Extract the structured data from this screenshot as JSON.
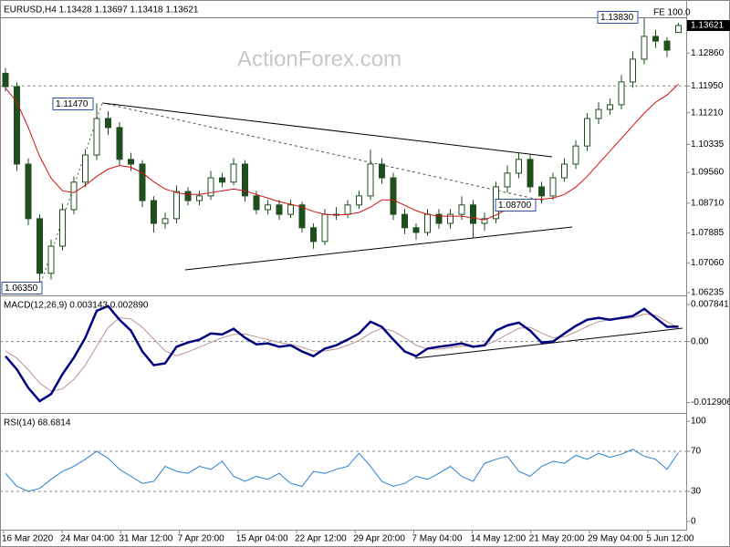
{
  "chart_data": [
    {
      "type": "candlestick",
      "title": "EURUSD,H4 1.13428 1.13697 1.13418 1.13621",
      "watermark": "ActionForex.com",
      "color": "#1f4f1f",
      "open": [
        1.123,
        1.1193,
        1.0979,
        1.0828,
        1.0677,
        1.0752,
        1.0853,
        1.0929,
        1.1004,
        1.1105,
        1.108,
        1.0992,
        1.0979,
        1.0878,
        1.0815,
        1.0828,
        1.0903,
        1.0878,
        1.0891,
        1.0941,
        1.0929,
        1.0979,
        1.0891,
        1.0853,
        1.0866,
        1.084,
        1.0866,
        1.0803,
        1.0765,
        1.084,
        1.084,
        1.0866,
        1.0891,
        1.0979,
        1.0941,
        1.084,
        1.0803,
        1.079,
        1.084,
        1.0815,
        1.084,
        1.0866,
        1.0815,
        1.0828,
        1.0916,
        1.0954,
        1.0992,
        1.0916,
        1.0891,
        1.0941,
        1.0979,
        1.1029,
        1.1105,
        1.113,
        1.1143,
        1.1206,
        1.1269,
        1.1332,
        1.1319,
        1.13428
      ],
      "high": [
        1.1245,
        1.1205,
        1.0995,
        1.084,
        1.077,
        1.087,
        1.0945,
        1.102,
        1.1147,
        1.1125,
        1.1095,
        1.101,
        1.099,
        1.089,
        1.0845,
        1.092,
        1.0915,
        1.0905,
        1.096,
        1.0955,
        1.0995,
        1.099,
        1.0905,
        1.088,
        1.088,
        1.088,
        1.0875,
        1.0815,
        1.0855,
        1.086,
        1.088,
        1.0905,
        1.102,
        1.0995,
        1.0955,
        1.0855,
        1.0815,
        1.0855,
        1.0855,
        1.0855,
        1.089,
        1.088,
        1.0845,
        1.093,
        1.0975,
        1.101,
        1.1005,
        1.093,
        1.0955,
        1.0995,
        1.1045,
        1.112,
        1.115,
        1.116,
        1.1225,
        1.129,
        1.1383,
        1.135,
        1.133,
        1.13697
      ],
      "low": [
        1.118,
        1.096,
        1.081,
        1.0635,
        1.066,
        1.074,
        1.084,
        1.0915,
        1.099,
        1.106,
        1.0975,
        1.096,
        1.086,
        1.079,
        1.08,
        1.0815,
        1.0865,
        1.0865,
        1.088,
        1.0915,
        1.092,
        1.0875,
        1.084,
        1.084,
        1.0825,
        1.083,
        1.079,
        1.0745,
        1.0755,
        1.0825,
        1.083,
        1.0855,
        1.088,
        1.0925,
        1.0825,
        1.0785,
        1.077,
        1.078,
        1.08,
        1.08,
        1.0825,
        1.0775,
        1.0795,
        1.0815,
        1.09,
        1.094,
        1.09,
        1.087,
        1.088,
        1.093,
        1.0965,
        1.1015,
        1.109,
        1.1115,
        1.113,
        1.119,
        1.1255,
        1.13,
        1.1275,
        1.13418
      ],
      "close": [
        1.1193,
        1.0979,
        1.0828,
        1.0677,
        1.0752,
        1.0853,
        1.0929,
        1.1004,
        1.1105,
        1.108,
        1.0992,
        1.0979,
        1.0878,
        1.0815,
        1.0828,
        1.0903,
        1.0878,
        1.0891,
        1.0941,
        1.0929,
        1.0979,
        1.0891,
        1.0853,
        1.0866,
        1.084,
        1.0866,
        1.0803,
        1.0765,
        1.084,
        1.084,
        1.0866,
        1.0891,
        1.0979,
        1.0941,
        1.084,
        1.0803,
        1.079,
        1.084,
        1.0815,
        1.084,
        1.0866,
        1.0815,
        1.0828,
        1.0916,
        1.0954,
        1.0992,
        1.0916,
        1.0891,
        1.0941,
        1.0979,
        1.1029,
        1.1105,
        1.113,
        1.1143,
        1.1206,
        1.1269,
        1.1332,
        1.1319,
        1.1294,
        1.13621
      ],
      "ma": {
        "color": "#d01010",
        "values": [
          1.119,
          1.115,
          1.108,
          1.1,
          1.094,
          1.0905,
          1.09,
          1.092,
          1.0945,
          1.0965,
          1.0975,
          1.097,
          1.0955,
          1.093,
          1.091,
          1.09,
          1.0895,
          1.0895,
          1.09,
          1.0905,
          1.091,
          1.0905,
          1.0895,
          1.0885,
          1.0875,
          1.0868,
          1.086,
          1.0848,
          1.084,
          1.0838,
          1.084,
          1.0845,
          1.086,
          1.088,
          1.088,
          1.0865,
          1.085,
          1.084,
          1.0835,
          1.0835,
          1.0835,
          1.083,
          1.0825,
          1.0838,
          1.0855,
          1.0875,
          1.0882,
          1.0882,
          1.0885,
          1.0895,
          1.0915,
          1.0945,
          1.098,
          1.1015,
          1.105,
          1.1085,
          1.112,
          1.115,
          1.117,
          1.12
        ]
      },
      "ylim": [
        1.0621,
        1.142
      ],
      "yticks": [
        1.13621,
        {
          "value": 1.1286,
          "label": "1.12860"
        },
        {
          "value": 1.1195,
          "label": "1.11950"
        },
        {
          "value": 1.1121,
          "label": "1.11210"
        },
        1.10335,
        {
          "value": 1.0956,
          "label": "1.09560"
        },
        {
          "value": 1.0871,
          "label": "1.08710"
        },
        1.07885,
        {
          "value": 1.0706,
          "label": "1.07060"
        },
        1.06235
      ],
      "levels": [
        1.1195
      ],
      "annotations": [
        "1.13830",
        "FE 100.0",
        "1.11470",
        "1.08700",
        "1.06350"
      ]
    },
    {
      "type": "line",
      "title": "MACD(12,26,9) 0.003143 0.002890",
      "series": [
        {
          "color": "#000080",
          "values": [
            -0.0031,
            -0.0059,
            -0.0098,
            -0.0126,
            -0.0111,
            -0.0069,
            -0.0034,
            0.0008,
            0.0065,
            0.0075,
            0.0046,
            0.0023,
            -0.0021,
            -0.005,
            -0.0046,
            -0.0011,
            -0.0002,
            0.0004,
            0.0017,
            0.0015,
            0.0027,
            0.0008,
            -0.0006,
            -0.0004,
            -0.0011,
            -0.0008,
            -0.0021,
            -0.0031,
            -0.0015,
            -0.0008,
            0.0004,
            0.0017,
            0.0042,
            0.0031,
            0.0004,
            -0.0021,
            -0.0031,
            -0.0015,
            -0.0011,
            -0.0008,
            -0.0004,
            -0.0011,
            -0.0008,
            0.0023,
            0.0034,
            0.004,
            0.0023,
            -0.0002,
            0.0,
            0.0017,
            0.0033,
            0.0046,
            0.005,
            0.0046,
            0.005,
            0.0054,
            0.0069,
            0.005,
            0.0031,
            0.003143
          ]
        },
        {
          "color": "#c09090",
          "values": [
            -0.002,
            -0.0035,
            -0.006,
            -0.0088,
            -0.0105,
            -0.01,
            -0.008,
            -0.005,
            -0.001,
            0.003,
            0.005,
            0.0048,
            0.003,
            0.0005,
            -0.002,
            -0.003,
            -0.0022,
            -0.0012,
            -0.0002,
            0.0008,
            0.0015,
            0.0016,
            0.001,
            0.0004,
            -0.0002,
            -0.0006,
            -0.0012,
            -0.002,
            -0.002,
            -0.0016,
            -0.0008,
            0.0002,
            0.0018,
            0.0028,
            0.0022,
            0.0008,
            -0.0008,
            -0.0016,
            -0.0016,
            -0.0013,
            -0.001,
            -0.001,
            -0.0009,
            0.0002,
            0.0015,
            0.0028,
            0.003,
            0.0018,
            0.0008,
            0.001,
            0.002,
            0.0032,
            0.0042,
            0.0046,
            0.0048,
            0.005,
            0.0058,
            0.0056,
            0.0042,
            0.00289
          ]
        }
      ],
      "ylim": [
        -0.01492,
        0.00918
      ],
      "yticks": [
        0.007841,
        {
          "value": 0,
          "label": "0.00"
        },
        -0.012906
      ],
      "levels": [
        0
      ]
    },
    {
      "type": "line",
      "title": "RSI(14) 68.6814",
      "series": [
        {
          "color": "#2a7fd4",
          "values": [
            48,
            35,
            30,
            33,
            42,
            50,
            55,
            62,
            70,
            63,
            52,
            45,
            38,
            40,
            55,
            50,
            48,
            55,
            52,
            60,
            45,
            40,
            45,
            42,
            48,
            38,
            35,
            50,
            48,
            52,
            55,
            68,
            55,
            40,
            35,
            38,
            45,
            42,
            48,
            55,
            45,
            40,
            58,
            62,
            65,
            50,
            45,
            55,
            60,
            58,
            66,
            62,
            68,
            64,
            67,
            72,
            65,
            62,
            52,
            68.6814
          ]
        }
      ],
      "ylim": [
        -7.3,
        105.5
      ],
      "yticks": [
        100,
        70,
        30,
        0
      ],
      "levels": [
        70,
        30
      ],
      "xtick_labels": [
        "16 Mar 2020",
        "24 Mar 04:00",
        "31 Mar 12:00",
        "7 Apr 20:00",
        "15 Apr 04:00",
        "22 Apr 12:00",
        "29 Apr 20:00",
        "7 May 04:00",
        "14 May 12:00",
        "21 May 20:00",
        "29 May 04:00",
        "5 Jun 12:00"
      ]
    }
  ]
}
